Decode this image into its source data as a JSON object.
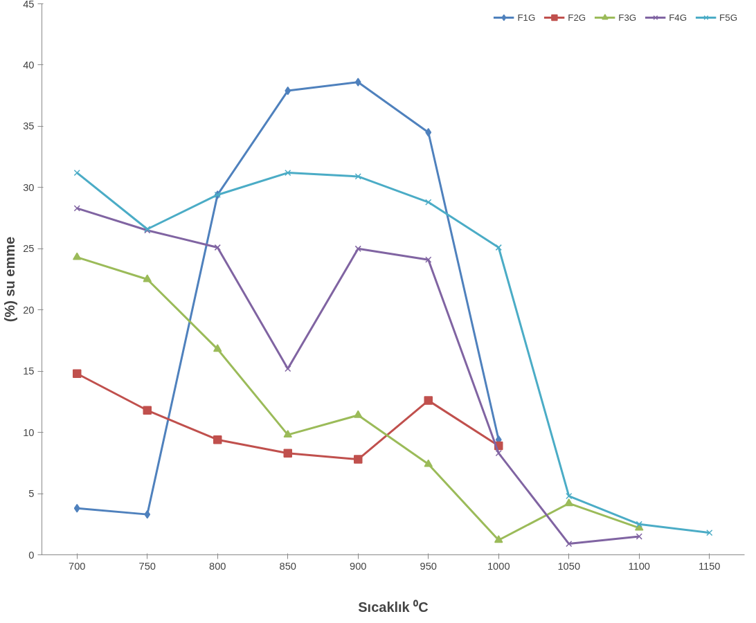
{
  "chart_data": {
    "type": "line",
    "xlabel": "Sıcaklık ⁰C",
    "ylabel": "(%) su emme",
    "categories": [
      "700",
      "750",
      "800",
      "850",
      "900",
      "950",
      "1000",
      "1050",
      "1100",
      "1150"
    ],
    "ylim": [
      0,
      45
    ],
    "yticks": [
      0,
      5,
      10,
      15,
      20,
      25,
      30,
      35,
      40,
      45
    ],
    "grid": false,
    "legend": "top right",
    "line_style": "solid",
    "series": [
      {
        "name": "F1G",
        "color": "#4f81bd",
        "marker": "diamond",
        "values": [
          3.8,
          3.3,
          29.4,
          37.9,
          38.6,
          34.5,
          9.4,
          null,
          null,
          null
        ]
      },
      {
        "name": "F2G",
        "color": "#c0504d",
        "marker": "square",
        "values": [
          14.8,
          11.8,
          9.4,
          8.3,
          7.8,
          12.6,
          8.9,
          null,
          null,
          null
        ]
      },
      {
        "name": "F3G",
        "color": "#9bbb59",
        "marker": "triangle",
        "values": [
          24.3,
          22.5,
          16.8,
          9.8,
          11.4,
          7.4,
          1.2,
          4.2,
          2.2,
          null
        ]
      },
      {
        "name": "F4G",
        "color": "#8064a2",
        "marker": "cross",
        "values": [
          28.3,
          26.5,
          25.1,
          15.2,
          25.0,
          24.1,
          8.3,
          0.9,
          1.5,
          null
        ]
      },
      {
        "name": "F5G",
        "color": "#4bacc6",
        "marker": "cross",
        "values": [
          31.2,
          26.6,
          29.4,
          31.2,
          30.9,
          28.8,
          25.1,
          4.8,
          2.5,
          1.8
        ]
      }
    ]
  }
}
